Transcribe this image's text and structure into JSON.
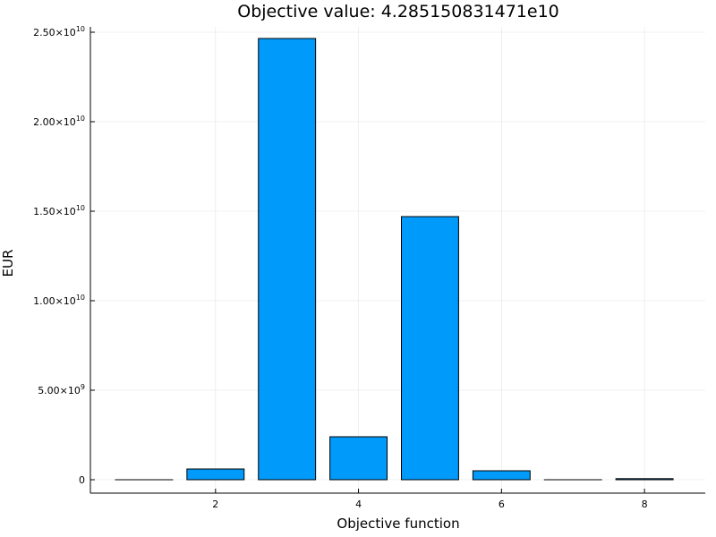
{
  "chart_data": {
    "type": "bar",
    "title": "Objective value: 4.285150831471e10",
    "xlabel": "Objective function",
    "ylabel": "EUR",
    "x": [
      1,
      2,
      3,
      4,
      5,
      6,
      7,
      8
    ],
    "values": [
      0,
      600000000,
      24650000000,
      2400000000,
      14700000000,
      500000000,
      0,
      60000000
    ],
    "xlim": [
      0.25,
      8.85
    ],
    "ylim": [
      -750000000,
      25300000000
    ],
    "x_ticks": [
      2,
      4,
      6,
      8
    ],
    "x_tick_labels": [
      "2",
      "4",
      "6",
      "8"
    ],
    "y_ticks": [
      0,
      5000000000,
      10000000000,
      15000000000,
      20000000000,
      25000000000
    ],
    "y_tick_labels": [
      {
        "mantissa": "0",
        "exponent": ""
      },
      {
        "mantissa": "5.00×10",
        "exponent": "9"
      },
      {
        "mantissa": "1.00×10",
        "exponent": "10"
      },
      {
        "mantissa": "1.50×10",
        "exponent": "10"
      },
      {
        "mantissa": "2.00×10",
        "exponent": "10"
      },
      {
        "mantissa": "2.50×10",
        "exponent": "10"
      }
    ],
    "bar_color": "#009AFA",
    "grid": true,
    "legend": "none"
  }
}
